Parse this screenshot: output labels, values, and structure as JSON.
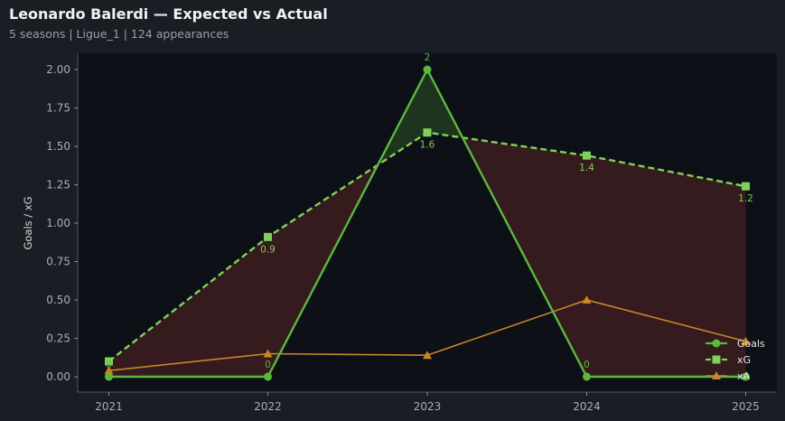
{
  "header": {
    "title": "Leonardo Balerdi — Expected vs Actual",
    "subtitle": "5 seasons | Ligue_1 | 124 appearances"
  },
  "colors": {
    "background": "#1a1d23",
    "plot_background": "#0d1016",
    "goals": "#5cb83f",
    "xg": "#7fd15a",
    "xa": "#c8862a",
    "over_fill": "#1f3a1f",
    "under_fill": "#3a1d1e"
  },
  "chart_data": {
    "type": "line",
    "title": "Leonardo Balerdi — Expected vs Actual",
    "xlabel": "",
    "ylabel": "Goals / xG",
    "x": [
      "2021",
      "2022",
      "2023",
      "2024",
      "2025"
    ],
    "ylim": [
      -0.1,
      2.1
    ],
    "yticks": [
      "0.00",
      "0.25",
      "0.50",
      "0.75",
      "1.00",
      "1.25",
      "1.50",
      "1.75",
      "2.00"
    ],
    "grid": false,
    "legend_position": "bottom-right",
    "series": [
      {
        "name": "Goals",
        "values": [
          0,
          0,
          2,
          0,
          0
        ],
        "marker": "circle",
        "style": "solid",
        "labels": [
          "0",
          "0",
          "2",
          "0",
          ""
        ]
      },
      {
        "name": "xG",
        "values": [
          0.1,
          0.91,
          1.59,
          1.44,
          1.24
        ],
        "marker": "square",
        "style": "dashed",
        "labels": [
          "",
          "0.9",
          "1.6",
          "1.4",
          "1.2"
        ]
      },
      {
        "name": "xA",
        "values": [
          0.04,
          0.15,
          0.14,
          0.5,
          0.23
        ],
        "marker": "triangle",
        "style": "solid",
        "labels": []
      }
    ]
  }
}
